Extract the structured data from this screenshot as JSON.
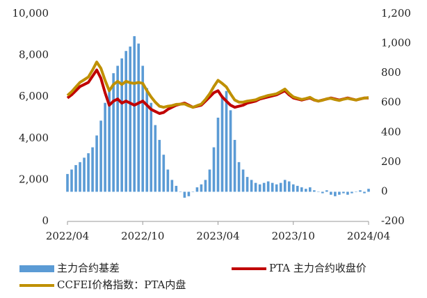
{
  "chart_data": {
    "type": "bar-line-combo",
    "categories": [
      "2022/04",
      null,
      null,
      null,
      null,
      null,
      null,
      null,
      null,
      null,
      null,
      null,
      null,
      null,
      null,
      null,
      null,
      null,
      "2022/10",
      null,
      null,
      null,
      null,
      null,
      null,
      null,
      null,
      null,
      null,
      null,
      null,
      null,
      null,
      null,
      null,
      null,
      "2023/04",
      null,
      null,
      null,
      null,
      null,
      null,
      null,
      null,
      null,
      null,
      null,
      null,
      null,
      null,
      null,
      null,
      null,
      "2023/10",
      null,
      null,
      null,
      null,
      null,
      null,
      null,
      null,
      null,
      null,
      null,
      null,
      null,
      null,
      null,
      null,
      null,
      "2024/04"
    ],
    "ylim": [
      0,
      10000
    ],
    "yticks": [
      0,
      {
        "value": 2000,
        "label": "2,000"
      },
      {
        "value": 4000,
        "label": "4,000"
      },
      {
        "value": 6000,
        "label": "6,000"
      },
      {
        "value": 8000,
        "label": "8,000"
      },
      {
        "value": 10000,
        "label": "10,000"
      }
    ],
    "y2lim": [
      -200,
      1200
    ],
    "y2ticks": [
      -200,
      0,
      200,
      400,
      600,
      800,
      {
        "value": 1000,
        "label": "1,000"
      },
      {
        "value": 1200,
        "label": "1,200"
      }
    ],
    "series": [
      {
        "name": "主力合约基差",
        "kind": "bar",
        "axis": "y2",
        "color": "#5b9bd5",
        "values": [
          120,
          150,
          180,
          200,
          230,
          260,
          300,
          380,
          480,
          600,
          700,
          800,
          850,
          900,
          950,
          980,
          1050,
          1000,
          850,
          700,
          600,
          450,
          350,
          250,
          150,
          80,
          40,
          0,
          -40,
          -30,
          0,
          30,
          50,
          80,
          150,
          300,
          500,
          650,
          680,
          550,
          350,
          200,
          150,
          100,
          80,
          60,
          50,
          60,
          70,
          60,
          50,
          60,
          80,
          70,
          50,
          40,
          30,
          20,
          30,
          10,
          0,
          -10,
          10,
          -20,
          -30,
          -20,
          -10,
          -20,
          -10,
          0,
          10,
          -10,
          20
        ]
      },
      {
        "name": "PTA 主力合约收盘价",
        "kind": "line",
        "color": "#c00000",
        "values": [
          5950,
          6100,
          6300,
          6500,
          6600,
          6700,
          7000,
          7300,
          6900,
          6200,
          5600,
          5800,
          5900,
          5700,
          5800,
          5700,
          5600,
          5700,
          5800,
          5600,
          5400,
          5300,
          5200,
          5250,
          5400,
          5500,
          5600,
          5650,
          5700,
          5600,
          5500,
          5550,
          5600,
          5800,
          6000,
          6200,
          6300,
          6000,
          5800,
          5600,
          5500,
          5550,
          5600,
          5700,
          5750,
          5800,
          5900,
          5950,
          6000,
          6050,
          6100,
          6200,
          6300,
          6100,
          5950,
          5900,
          5850,
          5900,
          5950,
          5850,
          5800,
          5850,
          5900,
          5950,
          5900,
          5850,
          5900,
          5950,
          5900,
          5850,
          5900,
          5950,
          5950
        ]
      },
      {
        "name": "CCFEI价格指数：PTA内盘",
        "kind": "line",
        "color": "#bf9000",
        "values": [
          6070,
          6250,
          6480,
          6700,
          6830,
          6960,
          7300,
          7680,
          7380,
          6800,
          6300,
          6600,
          6750,
          6600,
          6750,
          6680,
          6650,
          6700,
          6650,
          6300,
          6000,
          5750,
          5550,
          5500,
          5550,
          5580,
          5640,
          5650,
          5660,
          5570,
          5500,
          5580,
          5650,
          5880,
          6150,
          6500,
          6800,
          6650,
          6480,
          6150,
          5850,
          5750,
          5750,
          5800,
          5830,
          5860,
          5950,
          6010,
          6070,
          6110,
          6150,
          6260,
          6380,
          6170,
          6000,
          5940,
          5880,
          5920,
          5980,
          5860,
          5800,
          5840,
          5910,
          5930,
          5870,
          5830,
          5890,
          5930,
          5890,
          5850,
          5910,
          5940,
          5970
        ]
      }
    ]
  }
}
